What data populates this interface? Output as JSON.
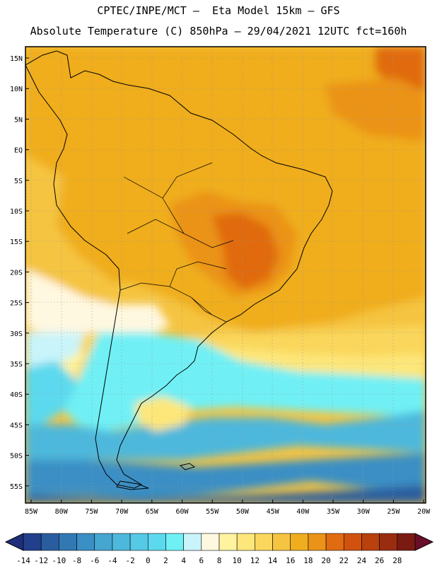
{
  "title_line1": "CPTEC/INPE/MCT –  Eta Model 15km – GFS",
  "title_line2": "Absolute Temperature (C) 850hPa – 29/04/2021 12UTC fct=160h",
  "lat_labels": [
    "15N",
    "10N",
    "5N",
    "EQ",
    "5S",
    "10S",
    "15S",
    "20S",
    "25S",
    "30S",
    "35S",
    "40S",
    "45S",
    "50S",
    "55S"
  ],
  "lon_labels": [
    "85W",
    "80W",
    "75W",
    "70W",
    "65W",
    "60W",
    "55W",
    "50W",
    "45W",
    "40W",
    "35W",
    "30W",
    "25W",
    "20W"
  ],
  "colorbar": {
    "labels": [
      "-14",
      "-12",
      "-10",
      "-8",
      "-6",
      "-4",
      "-2",
      "0",
      "2",
      "4",
      "6",
      "8",
      "10",
      "12",
      "14",
      "16",
      "18",
      "20",
      "22",
      "24",
      "26",
      "28"
    ],
    "colors": [
      "#223f8c",
      "#2a5d9f",
      "#3279b4",
      "#3a8fc4",
      "#45a6cf",
      "#4db8dc",
      "#55c9e6",
      "#5cd9ee",
      "#6ff0f5",
      "#c8f4fa",
      "#fff8e0",
      "#fff3a0",
      "#fde77a",
      "#fad75c",
      "#f5c441",
      "#f0ad1e",
      "#eb9318",
      "#e06b10",
      "#d1520e",
      "#b8410e",
      "#9a2c10",
      "#7a1a12"
    ]
  }
}
